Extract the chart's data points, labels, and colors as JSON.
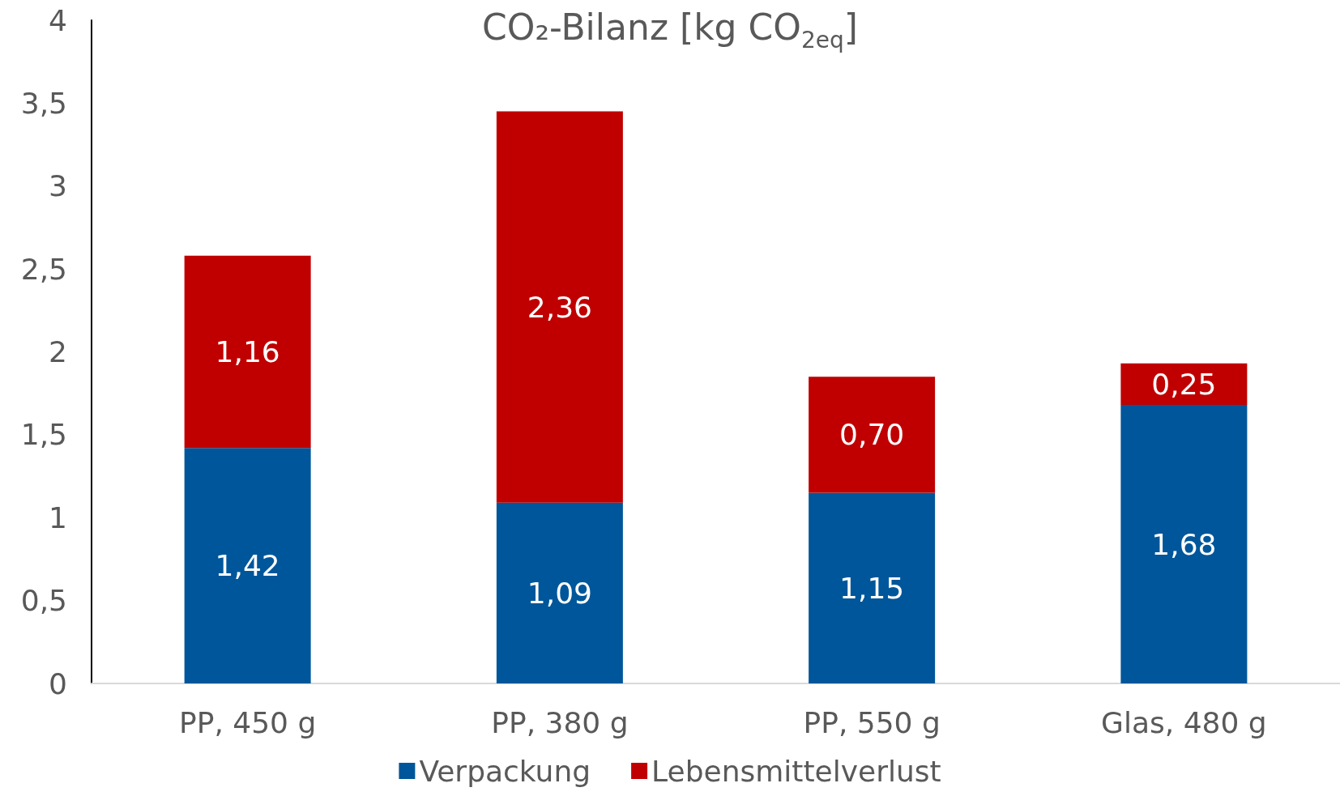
{
  "chart_data": {
    "type": "bar",
    "title": "CO₂-Bilanz [kg CO$_{2eq}$]",
    "stacked": true,
    "legend": "bottom",
    "grid": false,
    "categories": [
      "PP, 450 g",
      "PP, 380 g",
      "PP, 550 g",
      "Glas, 480 g"
    ],
    "series": [
      {
        "name": "Verpackung",
        "color": "#00569a",
        "values": [
          1.42,
          1.09,
          1.15,
          1.68
        ],
        "value_labels": [
          "1,42",
          "1,09",
          "1,15",
          "1,68"
        ]
      },
      {
        "name": "Lebensmittelverlust",
        "color": "#c00000",
        "values": [
          1.16,
          2.36,
          0.7,
          0.25
        ],
        "value_labels": [
          "1,16",
          "2,36",
          "0,70",
          "0,25"
        ]
      }
    ],
    "ylim": [
      0,
      4
    ],
    "yticks": [
      0,
      {
        "value": 0.5,
        "label": "0,5"
      },
      1,
      {
        "value": 1.5,
        "label": "1,5"
      },
      2,
      {
        "value": 2.5,
        "label": "2,5"
      },
      3,
      {
        "value": 3.5,
        "label": "3,5"
      },
      4
    ]
  }
}
